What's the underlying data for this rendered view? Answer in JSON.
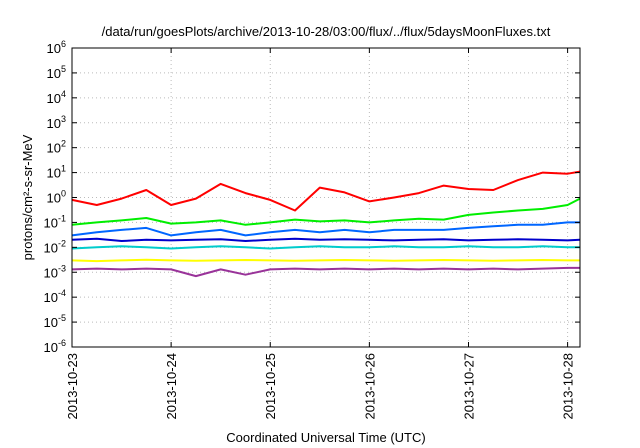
{
  "chart_data": {
    "type": "line",
    "title": "/data/run/goesPlots/archive/2013-10-28/03:00/flux/../flux/5daysMoonFluxes.txt",
    "xlabel": "Coordinated Universal Time (UTC)",
    "ylabel": "protons/cm²-s-sr-MeV",
    "yscale": "log",
    "ylim": [
      1e-06,
      1000000.0
    ],
    "y_ticks": [
      {
        "value": 1e-06,
        "base": "10",
        "exp": "-6"
      },
      {
        "value": 1e-05,
        "base": "10",
        "exp": "-5"
      },
      {
        "value": 0.0001,
        "base": "10",
        "exp": "-4"
      },
      {
        "value": 0.001,
        "base": "10",
        "exp": "-3"
      },
      {
        "value": 0.01,
        "base": "10",
        "exp": "-2"
      },
      {
        "value": 0.1,
        "base": "10",
        "exp": "-1"
      },
      {
        "value": 1,
        "base": "10",
        "exp": "0"
      },
      {
        "value": 10,
        "base": "10",
        "exp": "1"
      },
      {
        "value": 100,
        "base": "10",
        "exp": "2"
      },
      {
        "value": 1000,
        "base": "10",
        "exp": "3"
      },
      {
        "value": 10000,
        "base": "10",
        "exp": "4"
      },
      {
        "value": 100000,
        "base": "10",
        "exp": "5"
      },
      {
        "value": 1000000,
        "base": "10",
        "exp": "6"
      }
    ],
    "xlim": [
      "2013-10-23 00:00",
      "2013-10-28 03:00"
    ],
    "x_ticks": [
      "2013-10-23",
      "2013-10-24",
      "2013-10-25",
      "2013-10-26",
      "2013-10-27",
      "2013-10-28"
    ],
    "grid": true,
    "legend": "none",
    "series": [
      {
        "color": "#ff0000",
        "x": [
          "2013-10-23 00:00",
          "2013-10-23 06:00",
          "2013-10-23 12:00",
          "2013-10-23 18:00",
          "2013-10-24 00:00",
          "2013-10-24 06:00",
          "2013-10-24 12:00",
          "2013-10-24 18:00",
          "2013-10-25 00:00",
          "2013-10-25 06:00",
          "2013-10-25 12:00",
          "2013-10-25 18:00",
          "2013-10-26 00:00",
          "2013-10-26 06:00",
          "2013-10-26 12:00",
          "2013-10-26 18:00",
          "2013-10-27 00:00",
          "2013-10-27 06:00",
          "2013-10-27 12:00",
          "2013-10-27 18:00",
          "2013-10-28 00:00",
          "2013-10-28 03:00"
        ],
        "values": [
          0.8,
          0.5,
          0.9,
          2.0,
          0.5,
          0.9,
          3.5,
          1.5,
          0.8,
          0.3,
          2.5,
          1.6,
          0.7,
          1.0,
          1.5,
          3.0,
          2.2,
          2.0,
          5.0,
          10.0,
          9.0,
          11.0
        ]
      },
      {
        "color": "#00ee00",
        "x": [
          "2013-10-23 00:00",
          "2013-10-23 06:00",
          "2013-10-23 12:00",
          "2013-10-23 18:00",
          "2013-10-24 00:00",
          "2013-10-24 06:00",
          "2013-10-24 12:00",
          "2013-10-24 18:00",
          "2013-10-25 00:00",
          "2013-10-25 06:00",
          "2013-10-25 12:00",
          "2013-10-25 18:00",
          "2013-10-26 00:00",
          "2013-10-26 06:00",
          "2013-10-26 12:00",
          "2013-10-26 18:00",
          "2013-10-27 00:00",
          "2013-10-27 06:00",
          "2013-10-27 12:00",
          "2013-10-27 18:00",
          "2013-10-28 00:00",
          "2013-10-28 03:00"
        ],
        "values": [
          0.08,
          0.1,
          0.12,
          0.15,
          0.09,
          0.1,
          0.12,
          0.08,
          0.1,
          0.13,
          0.11,
          0.12,
          0.1,
          0.12,
          0.14,
          0.13,
          0.2,
          0.25,
          0.3,
          0.35,
          0.5,
          0.9
        ]
      },
      {
        "color": "#0066ff",
        "x": [
          "2013-10-23 00:00",
          "2013-10-23 06:00",
          "2013-10-23 12:00",
          "2013-10-23 18:00",
          "2013-10-24 00:00",
          "2013-10-24 06:00",
          "2013-10-24 12:00",
          "2013-10-24 18:00",
          "2013-10-25 00:00",
          "2013-10-25 06:00",
          "2013-10-25 12:00",
          "2013-10-25 18:00",
          "2013-10-26 00:00",
          "2013-10-26 06:00",
          "2013-10-26 12:00",
          "2013-10-26 18:00",
          "2013-10-27 00:00",
          "2013-10-27 06:00",
          "2013-10-27 12:00",
          "2013-10-27 18:00",
          "2013-10-28 00:00",
          "2013-10-28 03:00"
        ],
        "values": [
          0.03,
          0.04,
          0.05,
          0.06,
          0.03,
          0.04,
          0.05,
          0.03,
          0.04,
          0.05,
          0.04,
          0.05,
          0.04,
          0.05,
          0.05,
          0.05,
          0.06,
          0.07,
          0.08,
          0.08,
          0.1,
          0.1
        ]
      },
      {
        "color": "#0000cc",
        "x": [
          "2013-10-23 00:00",
          "2013-10-23 06:00",
          "2013-10-23 12:00",
          "2013-10-23 18:00",
          "2013-10-24 00:00",
          "2013-10-24 06:00",
          "2013-10-24 12:00",
          "2013-10-24 18:00",
          "2013-10-25 00:00",
          "2013-10-25 06:00",
          "2013-10-25 12:00",
          "2013-10-25 18:00",
          "2013-10-26 00:00",
          "2013-10-26 06:00",
          "2013-10-26 12:00",
          "2013-10-26 18:00",
          "2013-10-27 00:00",
          "2013-10-27 06:00",
          "2013-10-27 12:00",
          "2013-10-27 18:00",
          "2013-10-28 00:00",
          "2013-10-28 03:00"
        ],
        "values": [
          0.02,
          0.022,
          0.018,
          0.02,
          0.019,
          0.02,
          0.021,
          0.018,
          0.02,
          0.022,
          0.02,
          0.021,
          0.02,
          0.019,
          0.02,
          0.021,
          0.019,
          0.02,
          0.021,
          0.02,
          0.019,
          0.02
        ]
      },
      {
        "color": "#00cccc",
        "x": [
          "2013-10-23 00:00",
          "2013-10-23 06:00",
          "2013-10-23 12:00",
          "2013-10-23 18:00",
          "2013-10-24 00:00",
          "2013-10-24 06:00",
          "2013-10-24 12:00",
          "2013-10-24 18:00",
          "2013-10-25 00:00",
          "2013-10-25 06:00",
          "2013-10-25 12:00",
          "2013-10-25 18:00",
          "2013-10-26 00:00",
          "2013-10-26 06:00",
          "2013-10-26 12:00",
          "2013-10-26 18:00",
          "2013-10-27 00:00",
          "2013-10-27 06:00",
          "2013-10-27 12:00",
          "2013-10-27 18:00",
          "2013-10-28 00:00",
          "2013-10-28 03:00"
        ],
        "values": [
          0.009,
          0.01,
          0.011,
          0.01,
          0.009,
          0.01,
          0.011,
          0.01,
          0.009,
          0.01,
          0.011,
          0.01,
          0.01,
          0.011,
          0.01,
          0.01,
          0.011,
          0.01,
          0.01,
          0.011,
          0.01,
          0.01
        ]
      },
      {
        "color": "#ffff00",
        "x": [
          "2013-10-23 00:00",
          "2013-10-23 06:00",
          "2013-10-23 12:00",
          "2013-10-23 18:00",
          "2013-10-24 00:00",
          "2013-10-24 06:00",
          "2013-10-24 12:00",
          "2013-10-24 18:00",
          "2013-10-25 00:00",
          "2013-10-25 06:00",
          "2013-10-25 12:00",
          "2013-10-25 18:00",
          "2013-10-26 00:00",
          "2013-10-26 06:00",
          "2013-10-26 12:00",
          "2013-10-26 18:00",
          "2013-10-27 00:00",
          "2013-10-27 06:00",
          "2013-10-27 12:00",
          "2013-10-27 18:00",
          "2013-10-28 00:00",
          "2013-10-28 03:00"
        ],
        "values": [
          0.003,
          0.0028,
          0.003,
          0.0032,
          0.003,
          0.0029,
          0.003,
          0.0031,
          0.003,
          0.0029,
          0.003,
          0.0031,
          0.003,
          0.0029,
          0.003,
          0.0031,
          0.003,
          0.0029,
          0.003,
          0.0031,
          0.003,
          0.003
        ]
      },
      {
        "color": "#993399",
        "x": [
          "2013-10-23 00:00",
          "2013-10-23 06:00",
          "2013-10-23 12:00",
          "2013-10-23 18:00",
          "2013-10-24 00:00",
          "2013-10-24 06:00",
          "2013-10-24 12:00",
          "2013-10-24 18:00",
          "2013-10-25 00:00",
          "2013-10-25 06:00",
          "2013-10-25 12:00",
          "2013-10-25 18:00",
          "2013-10-26 00:00",
          "2013-10-26 06:00",
          "2013-10-26 12:00",
          "2013-10-26 18:00",
          "2013-10-27 00:00",
          "2013-10-27 06:00",
          "2013-10-27 12:00",
          "2013-10-27 18:00",
          "2013-10-28 00:00",
          "2013-10-28 03:00"
        ],
        "values": [
          0.0013,
          0.0014,
          0.0013,
          0.0014,
          0.0013,
          0.0007,
          0.0013,
          0.0008,
          0.0013,
          0.0014,
          0.0013,
          0.0014,
          0.0013,
          0.0014,
          0.0013,
          0.0014,
          0.0013,
          0.0014,
          0.0013,
          0.0014,
          0.0015,
          0.0015
        ]
      }
    ]
  }
}
